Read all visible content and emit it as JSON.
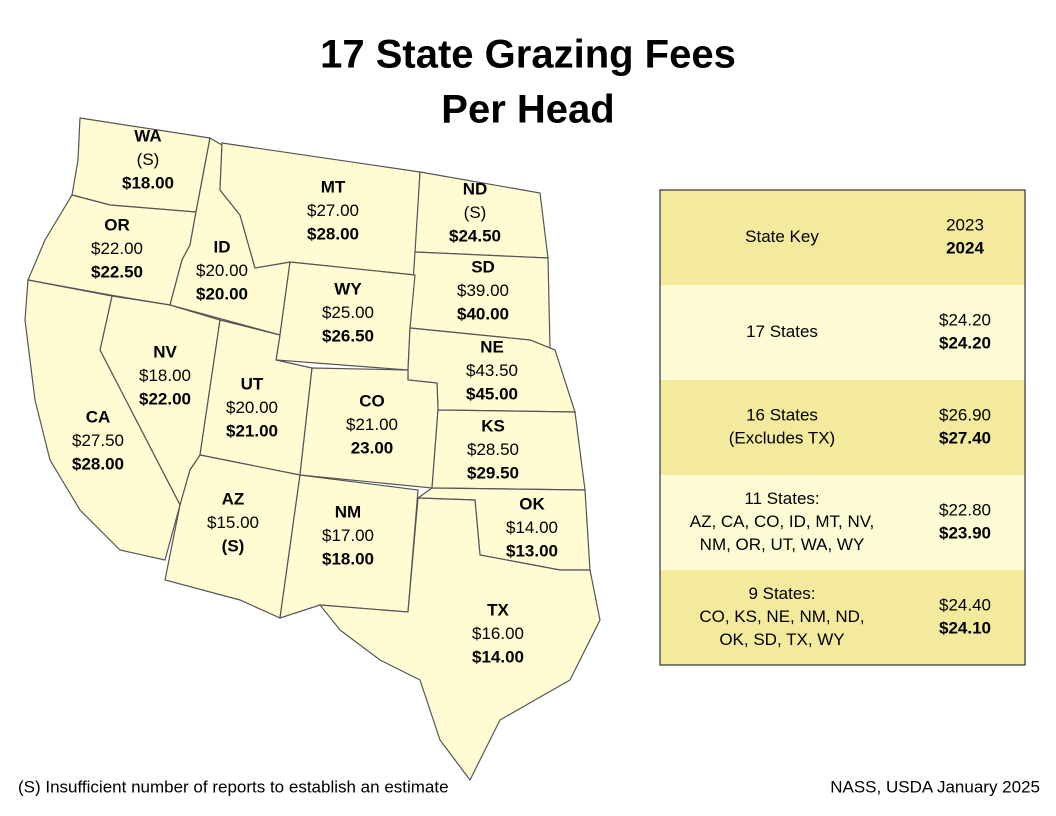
{
  "title": "17 State Grazing Fees",
  "subtitle": "Per Head",
  "states": [
    {
      "code": "WA",
      "fee_2023": "(S)",
      "fee_2024": "$18.00"
    },
    {
      "code": "OR",
      "fee_2023": "$22.00",
      "fee_2024": "$22.50"
    },
    {
      "code": "ID",
      "fee_2023": "$20.00",
      "fee_2024": "$20.00"
    },
    {
      "code": "MT",
      "fee_2023": "$27.00",
      "fee_2024": "$28.00"
    },
    {
      "code": "ND",
      "fee_2023": "(S)",
      "fee_2024": "$24.50"
    },
    {
      "code": "SD",
      "fee_2023": "$39.00",
      "fee_2024": "$40.00"
    },
    {
      "code": "WY",
      "fee_2023": "$25.00",
      "fee_2024": "$26.50"
    },
    {
      "code": "NE",
      "fee_2023": "$43.50",
      "fee_2024": "$45.00"
    },
    {
      "code": "NV",
      "fee_2023": "$18.00",
      "fee_2024": "$22.00"
    },
    {
      "code": "UT",
      "fee_2023": "$20.00",
      "fee_2024": "$21.00"
    },
    {
      "code": "CO",
      "fee_2023": "$21.00",
      "fee_2024": "23.00"
    },
    {
      "code": "KS",
      "fee_2023": "$28.50",
      "fee_2024": "$29.50"
    },
    {
      "code": "CA",
      "fee_2023": "$27.50",
      "fee_2024": "$28.00"
    },
    {
      "code": "AZ",
      "fee_2023": "$15.00",
      "fee_2024": "(S)"
    },
    {
      "code": "NM",
      "fee_2023": "$17.00",
      "fee_2024": "$18.00"
    },
    {
      "code": "OK",
      "fee_2023": "$14.00",
      "fee_2024": "$13.00"
    },
    {
      "code": "TX",
      "fee_2023": "$16.00",
      "fee_2024": "$14.00"
    }
  ],
  "key": {
    "header": {
      "label": "State Key",
      "year_2023": "2023",
      "year_2024": "2024"
    },
    "rows": [
      {
        "label": [
          "17 States"
        ],
        "fee_2023": "$24.20",
        "fee_2024": "$24.20"
      },
      {
        "label": [
          "16 States",
          "(Excludes TX)"
        ],
        "fee_2023": "$26.90",
        "fee_2024": "$27.40"
      },
      {
        "label": [
          "11 States:",
          "AZ, CA, CO, ID, MT, NV,",
          "NM, OR, UT, WA, WY"
        ],
        "fee_2023": "$22.80",
        "fee_2024": "$23.90"
      },
      {
        "label": [
          "9 States:",
          "CO, KS, NE, NM, ND,",
          "OK, SD, TX, WY"
        ],
        "fee_2023": "$24.40",
        "fee_2024": "$24.10"
      }
    ]
  },
  "footnote": "(S)  Insufficient number of reports to establish an estimate",
  "source": "NASS, USDA January 2025"
}
